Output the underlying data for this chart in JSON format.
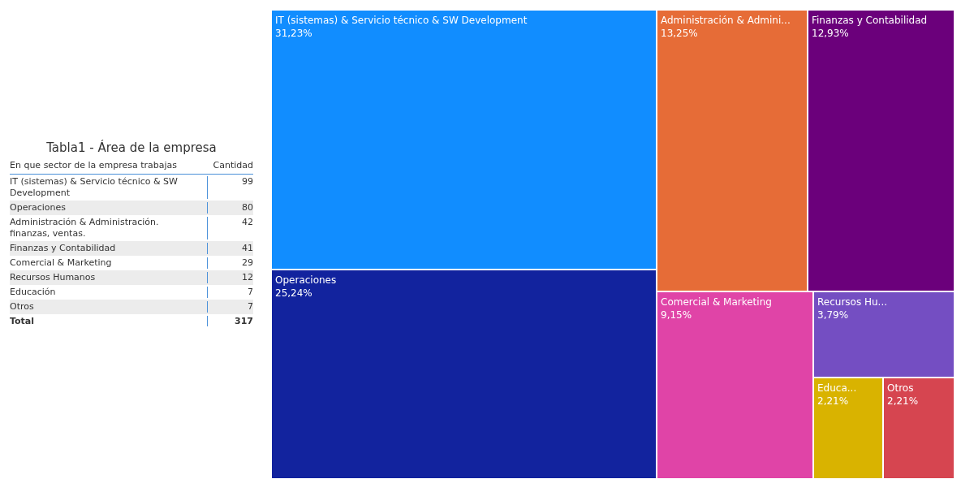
{
  "chart_data": [
    {
      "type": "other",
      "title": "Tabla1 - Área de la empresa",
      "annotations": [
        "En que sector de la empresa trabajas",
        "Cantidad",
        "Total",
        "317"
      ],
      "categories": [
        "IT (sistemas) & Servicio técnico & SW Development",
        "Operaciones",
        "Administración & Administración. finanzas, ventas.",
        "Finanzas y Contabilidad",
        "Comercial & Marketing",
        "Recursos Humanos",
        "Educación",
        "Otros"
      ],
      "values": [
        99,
        80,
        42,
        41,
        29,
        12,
        7,
        7
      ],
      "data_labels": true
    },
    {
      "type": "other",
      "categories": [
        "IT (sistemas) & Servicio técnico & SW Development",
        "Operaciones",
        "Administración & Admini...",
        "Finanzas y Contabilidad",
        "Comercial & Marketing",
        "Recursos Hu...",
        "Educa...",
        "Otros"
      ],
      "values": [
        31.23,
        25.24,
        13.25,
        12.93,
        9.15,
        3.79,
        2.21,
        2.21
      ],
      "value_labels": [
        "31,23%",
        "25,24%",
        "13,25%",
        "12,93%",
        "9,15%",
        "3,79%",
        "2,21%",
        "2,21%"
      ],
      "colors": [
        "#118dff",
        "#12239e",
        "#e66c37",
        "#6b007b",
        "#e044a7",
        "#744ec2",
        "#d9b300",
        "#d64550"
      ]
    }
  ]
}
